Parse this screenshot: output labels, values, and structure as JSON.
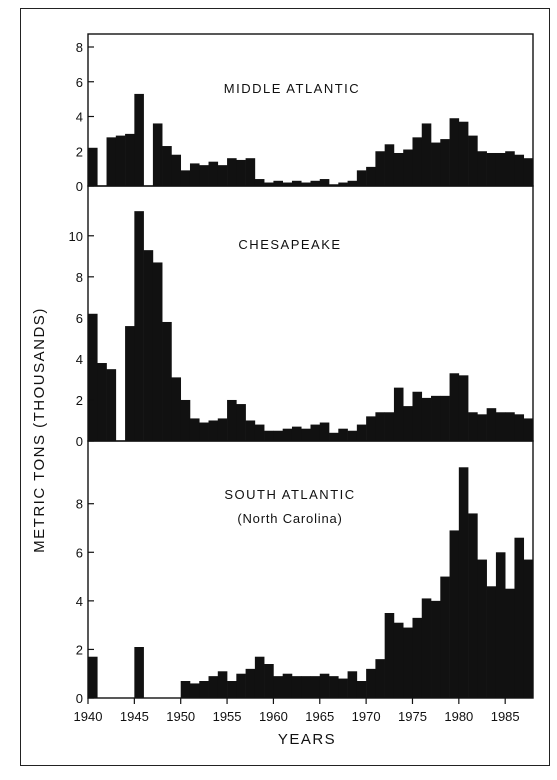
{
  "chart_data": {
    "type": "bar",
    "xlabel": "YEARS",
    "ylabel": "METRIC TONS (THOUSANDS)",
    "x_ticks": [
      1940,
      1945,
      1950,
      1955,
      1960,
      1965,
      1970,
      1975,
      1980,
      1985
    ],
    "years": [
      1940,
      1941,
      1942,
      1943,
      1944,
      1945,
      1946,
      1947,
      1948,
      1949,
      1950,
      1951,
      1952,
      1953,
      1954,
      1955,
      1956,
      1957,
      1958,
      1959,
      1960,
      1961,
      1962,
      1963,
      1964,
      1965,
      1966,
      1967,
      1968,
      1969,
      1970,
      1971,
      1972,
      1973,
      1974,
      1975,
      1976,
      1977,
      1978,
      1979,
      1980,
      1981,
      1982,
      1983,
      1984,
      1985,
      1986,
      1987
    ],
    "panels": [
      {
        "name": "MIDDLE ATLANTIC",
        "subtitle": "",
        "ylim": [
          0,
          8
        ],
        "yticks": [
          0,
          2,
          4,
          6,
          8
        ],
        "values": [
          2.2,
          0,
          2.8,
          2.9,
          3.0,
          5.3,
          0,
          3.6,
          2.3,
          1.8,
          0.9,
          1.3,
          1.2,
          1.4,
          1.2,
          1.6,
          1.5,
          1.6,
          0.4,
          0.2,
          0.3,
          0.2,
          0.3,
          0.2,
          0.3,
          0.4,
          0.1,
          0.2,
          0.3,
          0.9,
          1.1,
          2.0,
          2.4,
          1.9,
          2.1,
          2.8,
          3.6,
          2.5,
          2.7,
          3.9,
          3.7,
          2.9,
          2.0,
          1.9,
          1.9,
          2.0,
          1.8,
          1.6
        ]
      },
      {
        "name": "CHESAPEAKE",
        "subtitle": "",
        "ylim": [
          0,
          11.5
        ],
        "yticks": [
          0,
          2,
          4,
          6,
          8,
          10
        ],
        "values": [
          6.2,
          3.8,
          3.5,
          0,
          5.6,
          11.2,
          9.3,
          8.7,
          5.8,
          3.1,
          2.0,
          1.1,
          0.9,
          1.0,
          1.1,
          2.0,
          1.8,
          1.0,
          0.8,
          0.5,
          0.5,
          0.6,
          0.7,
          0.6,
          0.8,
          0.9,
          0.4,
          0.6,
          0.5,
          0.8,
          1.2,
          1.4,
          1.4,
          2.6,
          1.7,
          2.4,
          2.1,
          2.2,
          2.2,
          3.3,
          3.2,
          1.4,
          1.3,
          1.6,
          1.4,
          1.4,
          1.3,
          1.1
        ]
      },
      {
        "name": "SOUTH ATLANTIC",
        "subtitle": "(North Carolina)",
        "ylim": [
          0,
          9.8
        ],
        "yticks": [
          0,
          2,
          4,
          6,
          8
        ],
        "values": [
          1.7,
          0,
          0,
          0,
          0,
          2.1,
          0,
          0,
          0,
          0,
          0.7,
          0.6,
          0.7,
          0.9,
          1.1,
          0.7,
          1.0,
          1.2,
          1.7,
          1.4,
          0.9,
          1.0,
          0.9,
          0.9,
          0.9,
          1.0,
          0.9,
          0.8,
          1.1,
          0.7,
          1.2,
          1.6,
          3.5,
          3.1,
          2.9,
          3.3,
          4.1,
          4.0,
          5.0,
          6.9,
          9.5,
          7.6,
          5.7,
          4.6,
          6.0,
          4.5,
          6.6,
          5.7
        ]
      }
    ]
  }
}
